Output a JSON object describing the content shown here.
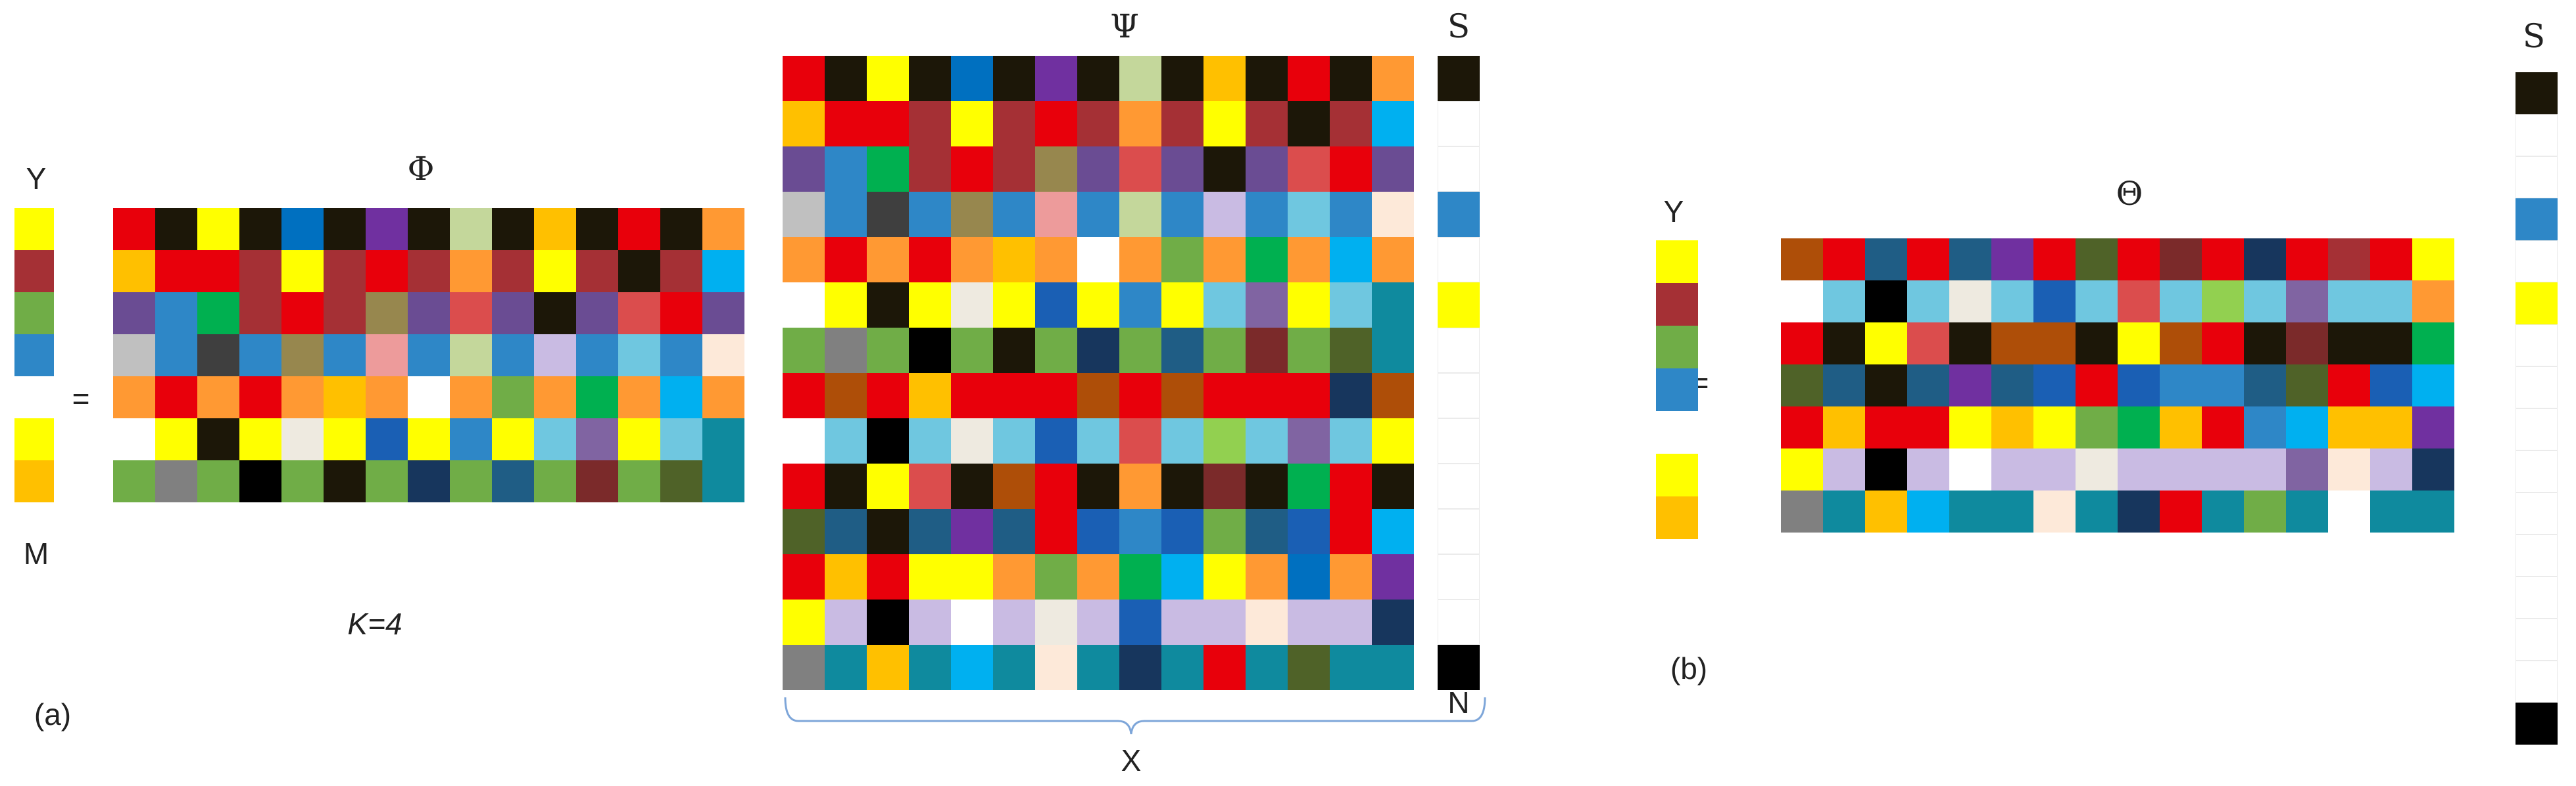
{
  "palette": {
    "k": "#1c1708",
    "r": "#e8000b",
    "y": "#ffff00",
    "b": "#0070c0",
    "p": "#7030a0",
    "g": "#c4d79b",
    "o": "#ffc000",
    "m": "#a53035",
    "z": "#ff9933",
    "n": "#00b050",
    "e": "#ae4e08",
    "c": "#00b0f0",
    "v": "#6a4c93",
    "s": "#2e87c7",
    "d": "#3f3f3f",
    "q": "#97874e",
    "t": "#db4d4d",
    "h": "#70ad47",
    "f": "#ed9b9b",
    "w": "#ffffff",
    "u": "#6fc7e0",
    "x": "#1a5fb4",
    "l": "#4f6228",
    "a": "#1f5d85",
    "i": "#c9bbe3",
    "j": "#8064a2",
    "B": "#000000",
    "G": "#808080",
    "N": "#17365d",
    "C": "#c0c0c0",
    "E": "#eeeae0",
    "T": "#0f8a9e",
    "R": "#7b2a2a",
    "P": "#fde9d9",
    "L": "#92d050",
    "D": "#17375e",
    "grid_line": "#ebebeb",
    "brace": "#7ea6d9"
  },
  "panel_a": {
    "panel_label": "(a)",
    "y_label": "Y",
    "m_label": "M",
    "equals": "=",
    "phi_label": "Φ",
    "psi_label": "Ψ",
    "s_label": "S",
    "n_label": "N",
    "x_label": "X",
    "k_label": "K=4",
    "y_vector": [
      "y",
      "m",
      "h",
      "s",
      "w",
      "y",
      "o"
    ],
    "phi_rows": [
      "rkykbkpkgkokrkz",
      "orrmymrmzmymkmc",
      "vsnmrmqvtvkvtrv",
      "CsdsqsfsgsisusP",
      "zrzrzozwzhznzcz",
      "wykyEyxysyujyuT",
      "hGhBhkhNhahRhlT"
    ],
    "psi_rows": [
      "rkykbkpkgkokrkz",
      "orrmymrmzmymkmc",
      "vsnmrmqvtvkvtrv",
      "CsdsqsfsgsisusP",
      "zrzrzozwzhznzcz",
      "wykyEyxysyujyuT",
      "hGhBhkhNhahRhlT",
      "rerorrrererrrNe",
      "wuBuEuxutuLujuy",
      "rkytkerkzkRknrk",
      "lakaparxsxhaxrc",
      "roryyzhzncyzbzp",
      "yiBiwiEixiiPiiN",
      "GToTcTPTNTrTlTT"
    ],
    "s_vector": [
      "k",
      "w",
      "w",
      "s",
      "w",
      "y",
      "w",
      "w",
      "w",
      "w",
      "w",
      "w",
      "w",
      "B"
    ]
  },
  "panel_b": {
    "panel_label": "(b)",
    "y_label": "Y",
    "equals": "=",
    "theta_label": "Θ",
    "s_label": "S",
    "y_vector": [
      "y",
      "m",
      "h",
      "s",
      "w",
      "y",
      "o"
    ],
    "theta_rows": [
      "eraraprlrRrNrmry",
      "wuBuEuxutuLujuuz",
      "rkytkeekyerkRkkn",
      "lakapaxrxssalrxc",
      "rorryoyhnorscoop",
      "yiBiwiiEiiiijPiN",
      "GTocTTPTNrThTwTT"
    ],
    "s_vector": [
      "k",
      "w",
      "w",
      "s",
      "w",
      "y",
      "w",
      "w",
      "w",
      "w",
      "w",
      "w",
      "w",
      "w",
      "w",
      "B"
    ]
  }
}
